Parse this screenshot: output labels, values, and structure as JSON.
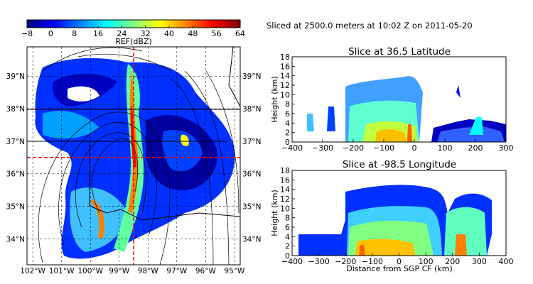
{
  "figure_title": "Sliced at 2500.0 meters at 10:02 Z on 2011-05-20",
  "colorbar": {
    "label": "REF(dBZ)",
    "ticks": [
      "−8",
      "0",
      "8",
      "16",
      "24",
      "32",
      "40",
      "48",
      "56",
      "64"
    ],
    "range": [
      -8,
      64
    ],
    "stops": [
      "#00007f",
      "#0000ff",
      "#0080ff",
      "#00ffff",
      "#80ff80",
      "#ffff00",
      "#ff8000",
      "#ff0000",
      "#7f0000"
    ]
  },
  "chart_data": [
    {
      "type": "map",
      "panel": "ppi-map",
      "lon_ticks": [
        "102°W",
        "101°W",
        "100°W",
        "99°W",
        "98°W",
        "97°W",
        "96°W",
        "95°W"
      ],
      "lat_ticks": [
        "39°N",
        "38°N",
        "37°N",
        "36°N",
        "35°N",
        "34°N"
      ],
      "lon_range": [
        -102.2,
        -94.8
      ],
      "lat_range": [
        33.2,
        39.9
      ],
      "slice_latitude": 36.5,
      "slice_longitude": -98.5,
      "grid": true
    },
    {
      "type": "heatmap",
      "panel": "lat-slice",
      "title": "Slice at 36.5 Latitude",
      "xlabel": "",
      "ylabel": "Height (km)",
      "x_ticks": [
        "−400",
        "−300",
        "−200",
        "−100",
        "0",
        "100",
        "200",
        "300"
      ],
      "y_ticks": [
        "0",
        "2",
        "4",
        "6",
        "8",
        "10",
        "12",
        "14",
        "16",
        "18"
      ],
      "xlim": [
        -400,
        300
      ],
      "ylim": [
        0,
        18
      ]
    },
    {
      "type": "heatmap",
      "panel": "lon-slice",
      "title": "Slice at -98.5 Longitude",
      "xlabel": "Distance from SGP CF (km)",
      "ylabel": "Height (km)",
      "x_ticks": [
        "−400",
        "−300",
        "−200",
        "−100",
        "0",
        "100",
        "200",
        "300",
        "400"
      ],
      "y_ticks": [
        "0",
        "2",
        "4",
        "6",
        "8",
        "10",
        "12",
        "14",
        "16",
        "18"
      ],
      "xlim": [
        -400,
        400
      ],
      "ylim": [
        0,
        18
      ]
    }
  ]
}
